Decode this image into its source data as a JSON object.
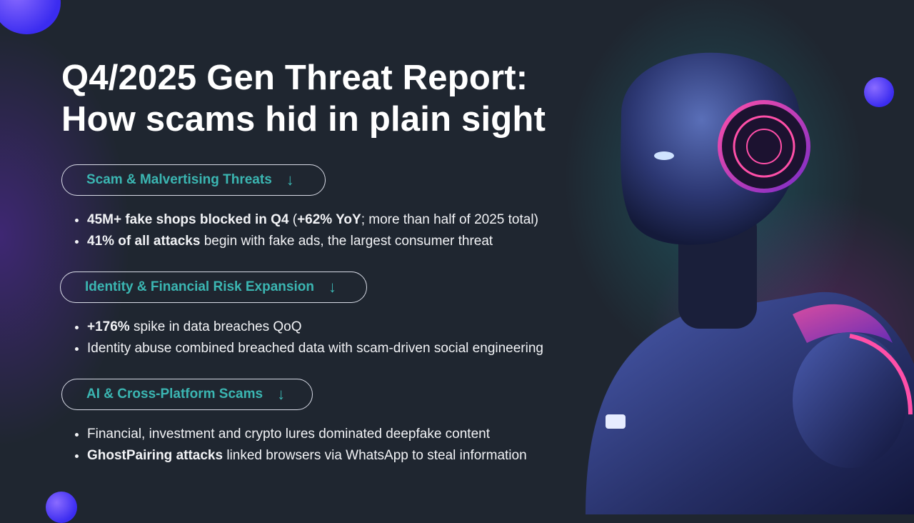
{
  "title_lines": [
    "Q4/2025 Gen Threat Report:",
    "How scams hid in plain sight"
  ],
  "sections": [
    {
      "label": "Scam & Malvertising Threats",
      "icon": "arrow-down-icon",
      "bullets": [
        [
          {
            "t": "45M+ fake shops blocked in Q4",
            "b": true
          },
          {
            "t": " (",
            "b": false
          },
          {
            "t": "+62% YoY",
            "b": true
          },
          {
            "t": "; more than half of 2025 total)",
            "b": false
          }
        ],
        [
          {
            "t": "41% of all attacks",
            "b": true
          },
          {
            "t": " begin with fake ads, the largest consumer threat",
            "b": false
          }
        ]
      ]
    },
    {
      "label": "Identity & Financial Risk Expansion",
      "icon": "arrow-down-icon",
      "bullets": [
        [
          {
            "t": "+176%",
            "b": true
          },
          {
            "t": " spike in data breaches QoQ",
            "b": false
          }
        ],
        [
          {
            "t": "Identity abuse combined breached data with scam-driven social engineering",
            "b": false
          }
        ]
      ]
    },
    {
      "label": "AI & Cross-Platform Scams",
      "icon": "arrow-down-icon",
      "bullets": [
        [
          {
            "t": "Financial, investment and crypto lures dominated deepfake content",
            "b": false
          }
        ],
        [
          {
            "t": "GhostPairing attacks",
            "b": true
          },
          {
            "t": " linked browsers via WhatsApp to steal information",
            "b": false
          }
        ]
      ]
    }
  ],
  "colors": {
    "background": "#1f2630",
    "accent_teal": "#3bb6b2",
    "orb": "#4a3cf5",
    "robot_glow_pink": "#ff3d9a"
  }
}
